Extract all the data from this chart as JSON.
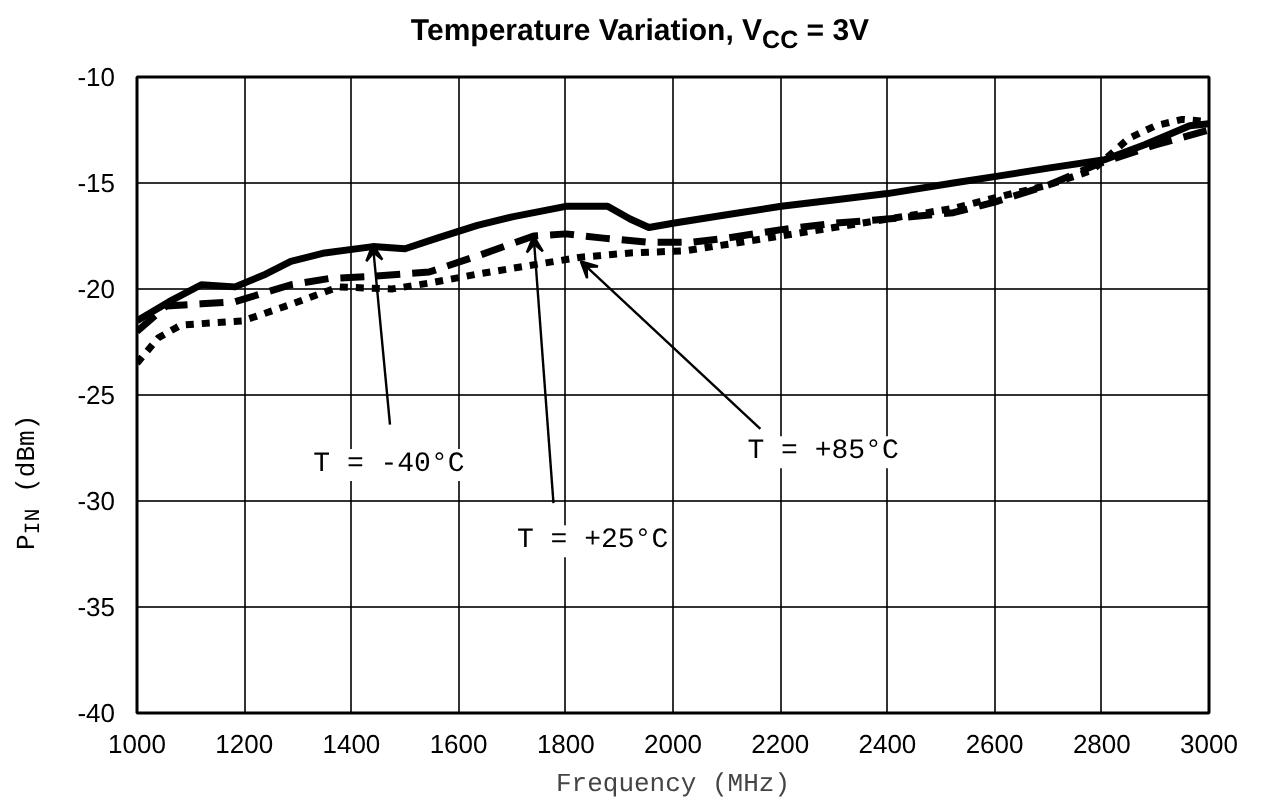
{
  "chart_data": {
    "type": "line",
    "title": "Temperature Variation, V$_{CC}$ = 3V",
    "xlabel": "Frequency (MHz)",
    "ylabel": "P$_{IN}$ (dBm)",
    "xlim": [
      1000,
      3000
    ],
    "ylim": [
      -40,
      -10
    ],
    "xticks": [
      1000,
      1200,
      1400,
      1600,
      1800,
      2000,
      2200,
      2400,
      2600,
      2800,
      3000
    ],
    "yticks": [
      -40,
      -35,
      -30,
      -25,
      -20,
      -15,
      -10
    ],
    "grid": true,
    "marker": "none",
    "series": [
      {
        "color": "#000000",
        "line_style": "solid",
        "x": [
          1000,
          1060,
          1120,
          1183,
          1240,
          1287,
          1350,
          1440,
          1500,
          1560,
          1635,
          1700,
          1800,
          1878,
          1920,
          1955,
          2000,
          2100,
          2202,
          2300,
          2400,
          2523,
          2600,
          2700,
          2805,
          2880,
          2964,
          3000
        ],
        "values": [
          -21.5,
          -20.6,
          -19.8,
          -19.9,
          -19.3,
          -18.7,
          -18.3,
          -18.0,
          -18.1,
          -17.6,
          -17.0,
          -16.6,
          -16.1,
          -16.1,
          -16.7,
          -17.1,
          -16.9,
          -16.5,
          -16.1,
          -15.8,
          -15.5,
          -15.0,
          -14.7,
          -14.3,
          -13.9,
          -13.2,
          -12.3,
          -12.2
        ]
      },
      {
        "color": "#000000",
        "line_style": "dashed",
        "x": [
          1000,
          1055,
          1120,
          1183,
          1287,
          1360,
          1440,
          1545,
          1640,
          1740,
          1800,
          1870,
          1955,
          2032,
          2100,
          2202,
          2300,
          2400,
          2523,
          2600,
          2700,
          2793,
          2900,
          3000
        ],
        "values": [
          -22.0,
          -20.8,
          -20.7,
          -20.6,
          -19.8,
          -19.5,
          -19.4,
          -19.2,
          -18.4,
          -17.5,
          -17.4,
          -17.6,
          -17.8,
          -17.8,
          -17.6,
          -17.2,
          -16.9,
          -16.7,
          -16.4,
          -15.9,
          -15.1,
          -14.1,
          -13.2,
          -12.5
        ]
      },
      {
        "color": "#000000",
        "line_style": "dotted",
        "x": [
          1000,
          1040,
          1082,
          1140,
          1198,
          1290,
          1376,
          1475,
          1550,
          1635,
          1730,
          1828,
          1920,
          2022,
          2100,
          2202,
          2300,
          2400,
          2523,
          2600,
          2700,
          2782,
          2850,
          2900,
          2950,
          3000
        ],
        "values": [
          -23.5,
          -22.3,
          -21.7,
          -21.6,
          -21.5,
          -20.7,
          -19.9,
          -20.0,
          -19.7,
          -19.3,
          -18.9,
          -18.5,
          -18.3,
          -18.2,
          -17.9,
          -17.5,
          -17.1,
          -16.7,
          -16.2,
          -15.7,
          -15.1,
          -14.4,
          -12.9,
          -12.3,
          -12.0,
          -12.1
        ]
      }
    ],
    "annotations": [
      {
        "text": "T = -40°C",
        "x": 1440,
        "y": -17.9
      },
      {
        "text": "T = +25°C",
        "x": 1740,
        "y": -17.5
      },
      {
        "text": "T = +85°C",
        "x": 1828,
        "y": -18.7
      }
    ]
  }
}
